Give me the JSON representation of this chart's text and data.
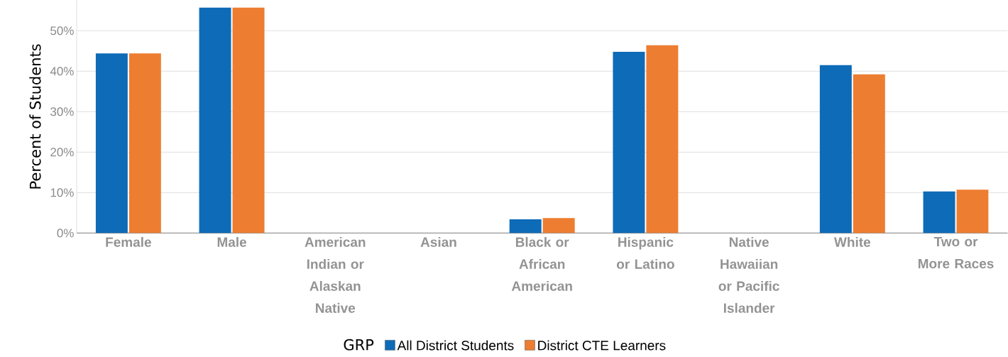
{
  "chart_data": {
    "type": "bar",
    "ylabel": "Percent of Students",
    "legend_title": "GRP",
    "categories": [
      "Female",
      "Male",
      "American Indian or Alaskan Native",
      "Asian",
      "Black or African American",
      "Hispanic or Latino",
      "Native Hawaiian or Pacific Islander",
      "White",
      "Two or More Races"
    ],
    "series": [
      {
        "name": "All District Students",
        "color": "#0e6bb8",
        "values": [
          44.4,
          55.7,
          null,
          null,
          3.4,
          44.8,
          null,
          41.5,
          10.3
        ]
      },
      {
        "name": "District CTE Learners",
        "color": "#ed7d31",
        "values": [
          44.4,
          55.7,
          null,
          null,
          3.7,
          46.4,
          null,
          39.2,
          10.7
        ]
      }
    ],
    "ylim": [
      0,
      57.5
    ],
    "yticks": [
      {
        "value": 0,
        "label": "0%"
      },
      {
        "value": 10,
        "label": "10%"
      },
      {
        "value": 20,
        "label": "20%"
      },
      {
        "value": 30,
        "label": "30%"
      },
      {
        "value": 40,
        "label": "40%"
      },
      {
        "value": 50,
        "label": "50%"
      }
    ],
    "grid": "y",
    "legend": "bottom"
  }
}
